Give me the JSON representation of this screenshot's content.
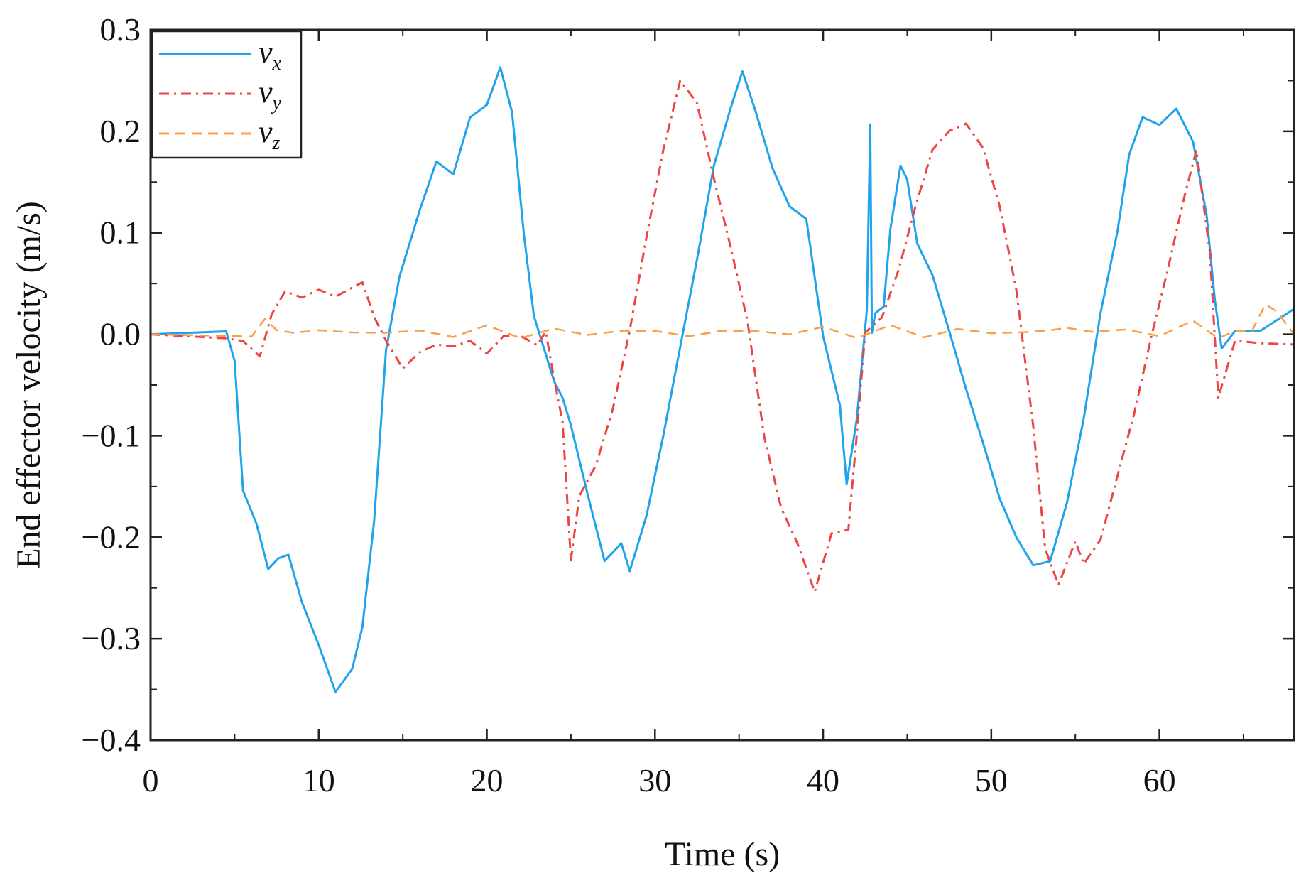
{
  "chart_data": {
    "type": "line",
    "title": "",
    "xlabel": "Time (s)",
    "ylabel": "End effector velocity (m/s)",
    "xlim": [
      0,
      68
    ],
    "ylim": [
      -0.4,
      0.3
    ],
    "xticks": [
      0,
      10,
      20,
      30,
      40,
      50,
      60
    ],
    "xtick_labels": [
      "0",
      "10",
      "20",
      "30",
      "40",
      "50",
      "60"
    ],
    "yticks": [
      0.3,
      0.2,
      0.1,
      0.0,
      -0.1,
      -0.2,
      -0.3,
      -0.4
    ],
    "ytick_labels": [
      "0.3",
      "0.2",
      "0.1",
      "0.0",
      "−0.1",
      "−0.2",
      "−0.3",
      "−0.4"
    ],
    "grid": false,
    "legend_position": "top-left",
    "series": [
      {
        "name": "v",
        "subscript": "x",
        "color": "#1fa3ec",
        "dash": "solid",
        "x": [
          0,
          4.5,
          5.0,
          5.5,
          6.3,
          7.0,
          7.6,
          8.2,
          9.0,
          10.0,
          11.0,
          12.0,
          12.6,
          13.3,
          14.0,
          14.8,
          16.0,
          17.0,
          18.0,
          19.0,
          20.0,
          20.8,
          21.5,
          22.2,
          22.8,
          23.4,
          24.0,
          24.5,
          25.0,
          26.0,
          27.0,
          28.0,
          28.5,
          29.5,
          30.5,
          31.5,
          32.5,
          33.5,
          34.5,
          35.2,
          36.0,
          37.0,
          38.0,
          39.0,
          40.0,
          41.0,
          41.4,
          42.0,
          42.6,
          42.8,
          42.9,
          43.1,
          43.6,
          44.0,
          44.6,
          45.0,
          45.6,
          46.5,
          47.5,
          48.5,
          49.5,
          50.5,
          51.5,
          52.5,
          53.5,
          54.5,
          55.5,
          56.5,
          57.5,
          58.2,
          59.0,
          60.0,
          61.0,
          62.0,
          62.8,
          63.3,
          63.7,
          64.5,
          66.0,
          67.5,
          68.0
        ],
        "values": [
          0.0,
          0.005,
          -0.03,
          -0.15,
          -0.19,
          -0.23,
          -0.22,
          -0.22,
          -0.26,
          -0.31,
          -0.35,
          -0.33,
          -0.29,
          -0.18,
          -0.02,
          0.06,
          0.12,
          0.17,
          0.16,
          0.21,
          0.23,
          0.26,
          0.22,
          0.1,
          0.015,
          -0.01,
          -0.05,
          -0.06,
          -0.09,
          -0.16,
          -0.22,
          -0.21,
          -0.23,
          -0.18,
          -0.1,
          -0.01,
          0.07,
          0.17,
          0.22,
          0.26,
          0.22,
          0.16,
          0.13,
          0.11,
          0.0,
          -0.07,
          -0.15,
          -0.08,
          0.02,
          0.21,
          0.0,
          0.02,
          0.03,
          0.1,
          0.17,
          0.15,
          0.09,
          0.06,
          0.0,
          -0.05,
          -0.11,
          -0.16,
          -0.2,
          -0.23,
          -0.22,
          -0.17,
          -0.08,
          0.02,
          0.1,
          0.18,
          0.21,
          0.21,
          0.22,
          0.19,
          0.12,
          0.03,
          -0.01,
          0.0,
          0.005,
          0.02,
          0.025
        ]
      },
      {
        "name": "v",
        "subscript": "y",
        "color": "#ee4444",
        "dash": "dashdot",
        "x": [
          0,
          4.5,
          5.5,
          6.5,
          7.2,
          8.0,
          9.0,
          10.0,
          11.0,
          12.0,
          12.6,
          13.3,
          14.0,
          15.0,
          16.0,
          17.0,
          18.0,
          19.0,
          20.0,
          21.0,
          22.0,
          23.0,
          23.5,
          24.0,
          24.5,
          25.0,
          25.5,
          26.5,
          27.5,
          28.5,
          29.5,
          30.5,
          31.5,
          32.5,
          33.5,
          34.5,
          35.5,
          36.5,
          37.5,
          38.5,
          39.5,
          40.5,
          41.5,
          42.0,
          42.5,
          43.5,
          44.5,
          45.5,
          46.5,
          47.5,
          48.5,
          49.5,
          50.5,
          51.5,
          52.5,
          53.2,
          54.0,
          55.0,
          55.5,
          56.5,
          57.5,
          58.5,
          59.5,
          60.5,
          61.5,
          62.2,
          63.0,
          63.5,
          64.5,
          66.0,
          68.0
        ],
        "values": [
          0.0,
          0.0,
          -0.01,
          -0.02,
          0.02,
          0.04,
          0.04,
          0.04,
          0.04,
          0.045,
          0.05,
          0.02,
          -0.01,
          -0.03,
          -0.02,
          -0.01,
          -0.01,
          -0.01,
          -0.015,
          -0.005,
          0.0,
          -0.01,
          0.0,
          -0.04,
          -0.09,
          -0.22,
          -0.16,
          -0.13,
          -0.07,
          0.0,
          0.1,
          0.18,
          0.25,
          0.23,
          0.15,
          0.09,
          0.01,
          -0.1,
          -0.17,
          -0.21,
          -0.25,
          -0.2,
          -0.19,
          -0.1,
          0.0,
          0.02,
          0.06,
          0.13,
          0.18,
          0.2,
          0.21,
          0.18,
          0.13,
          0.04,
          -0.09,
          -0.21,
          -0.25,
          -0.2,
          -0.23,
          -0.2,
          -0.14,
          -0.08,
          0.0,
          0.06,
          0.14,
          0.18,
          0.08,
          -0.06,
          -0.01,
          -0.005,
          -0.01
        ]
      },
      {
        "name": "v",
        "subscript": "z",
        "color": "#f5a04a",
        "dash": "dashed",
        "x": [
          0,
          6.0,
          6.8,
          7.5,
          8.5,
          10.0,
          12.0,
          14.0,
          16.0,
          18.0,
          20.0,
          22.0,
          24.0,
          26.0,
          28.0,
          30.0,
          32.0,
          34.0,
          36.0,
          38.0,
          40.0,
          42.0,
          44.0,
          46.0,
          48.0,
          50.0,
          52.0,
          53.5,
          54.5,
          56.0,
          58.0,
          60.0,
          62.0,
          63.5,
          64.5,
          65.5,
          66.3,
          67.0,
          68.0
        ],
        "values": [
          0.0,
          0.0,
          0.015,
          0.002,
          0.005,
          0.0,
          0.005,
          0.0,
          0.003,
          0.0,
          0.005,
          0.0,
          0.003,
          0.0,
          0.005,
          0.0,
          0.002,
          0.0,
          0.005,
          0.0,
          0.005,
          0.0,
          0.005,
          0.0,
          0.004,
          0.0,
          0.005,
          0.0,
          0.01,
          0.0,
          0.005,
          0.0,
          0.01,
          0.0,
          0.0,
          0.005,
          0.03,
          0.02,
          0.0
        ]
      }
    ]
  }
}
